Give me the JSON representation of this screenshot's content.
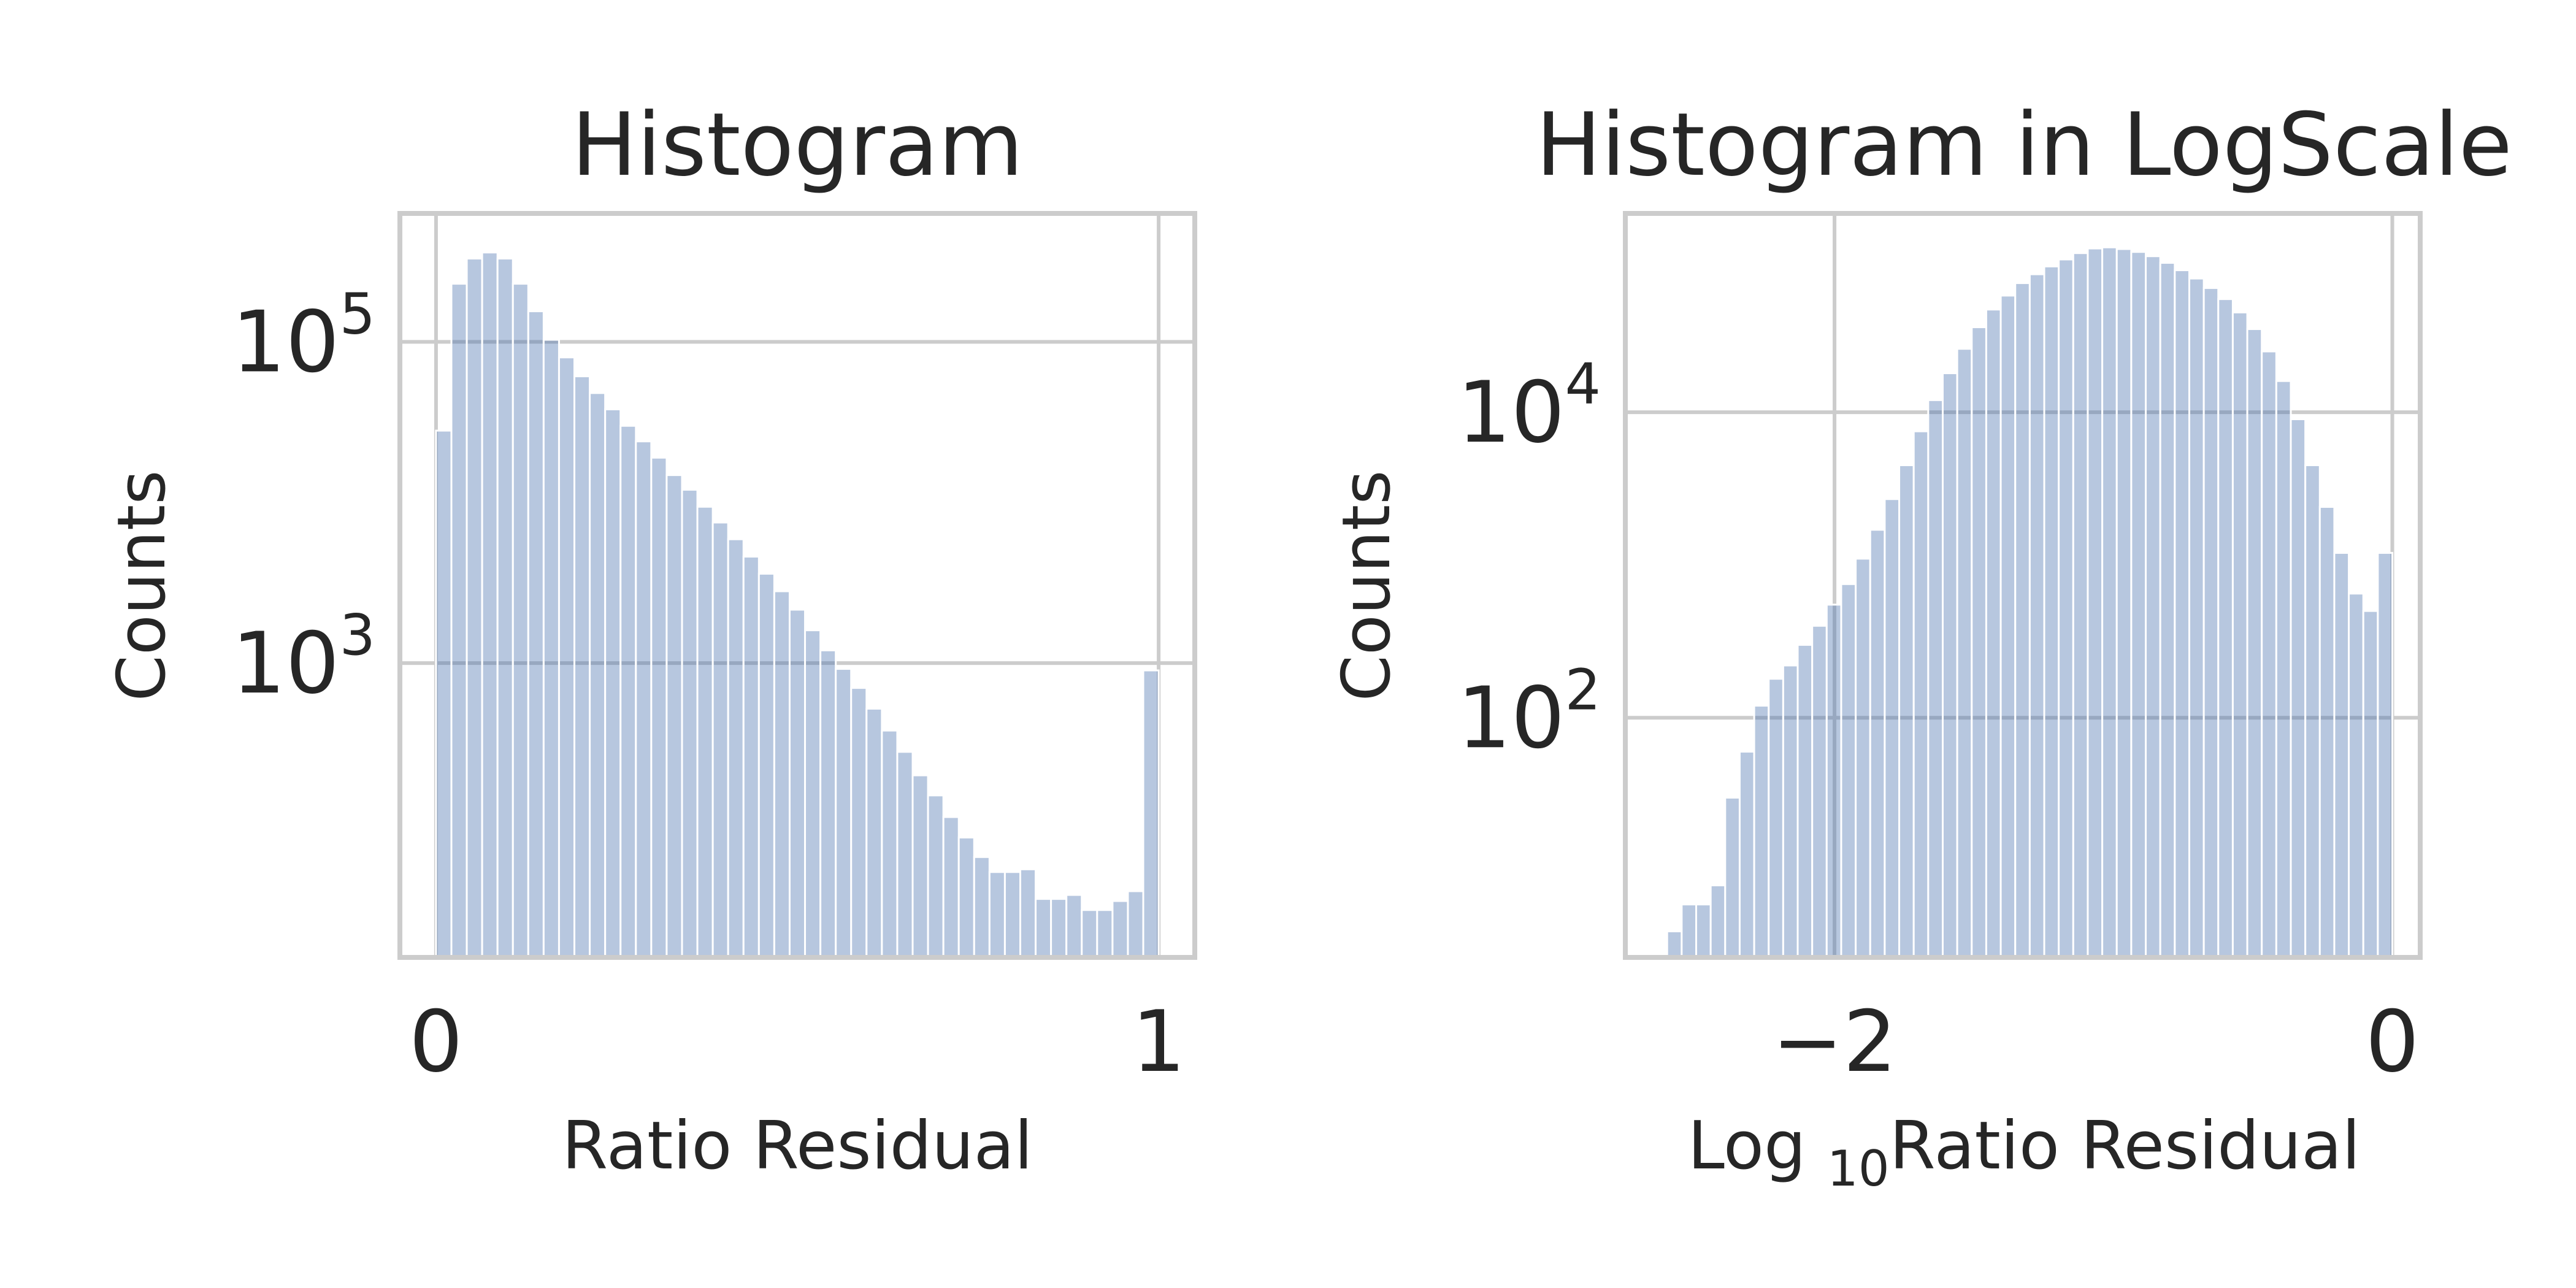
{
  "chart_data": [
    {
      "type": "bar",
      "title": "Histogram",
      "xlabel": "Ratio Residual",
      "ylabel": "Counts",
      "y_scale": "log",
      "grid": true,
      "xlim": [
        -0.05,
        1.05
      ],
      "ylim": [
        14.7,
        630000
      ],
      "x_ticks": [
        {
          "value": 0,
          "label": "0"
        },
        {
          "value": 1,
          "label": "1"
        }
      ],
      "y_ticks": [
        {
          "value": 1000,
          "base": "10",
          "exp": "3"
        },
        {
          "value": 100000,
          "base": "10",
          "exp": "5"
        }
      ],
      "bin_range": [
        0,
        1
      ],
      "counts": [
        28000,
        230000,
        330000,
        360000,
        330000,
        230000,
        155000,
        103000,
        80000,
        61000,
        48000,
        38000,
        30000,
        24000,
        19000,
        14800,
        12000,
        9400,
        7500,
        5900,
        4600,
        3600,
        2800,
        2150,
        1600,
        1200,
        920,
        700,
        520,
        380,
        280,
        200,
        150,
        110,
        82,
        62,
        50,
        50,
        52,
        34,
        34,
        36,
        29,
        29,
        33,
        38,
        900
      ]
    },
    {
      "type": "bar",
      "title": "Histogram in LogScale",
      "xlabel_main": "Log",
      "xlabel_sub": "10",
      "xlabel_rest": "Ratio Residual",
      "ylabel": "Counts",
      "y_scale": "log",
      "grid": true,
      "xlim": [
        -2.75,
        0.1
      ],
      "ylim": [
        2.7,
        200000
      ],
      "x_ticks": [
        {
          "value": -2,
          "label": "−2"
        },
        {
          "value": 0,
          "label": "0"
        }
      ],
      "y_ticks": [
        {
          "value": 100,
          "base": "10",
          "exp": "2"
        },
        {
          "value": 10000,
          "base": "10",
          "exp": "4"
        }
      ],
      "bin_range": [
        -2.6,
        0
      ],
      "counts": [
        4,
        6,
        6,
        8,
        30,
        60,
        120,
        180,
        220,
        300,
        400,
        550,
        750,
        1100,
        1700,
        2700,
        4500,
        7500,
        12000,
        18000,
        26000,
        36000,
        47000,
        58000,
        70000,
        80000,
        90000,
        100000,
        110000,
        118000,
        120000,
        117000,
        112000,
        105000,
        95000,
        85000,
        75000,
        65000,
        55000,
        45000,
        35000,
        25000,
        16000,
        9000,
        4500,
        2400,
        1200,
        650,
        500,
        1200
      ]
    }
  ]
}
